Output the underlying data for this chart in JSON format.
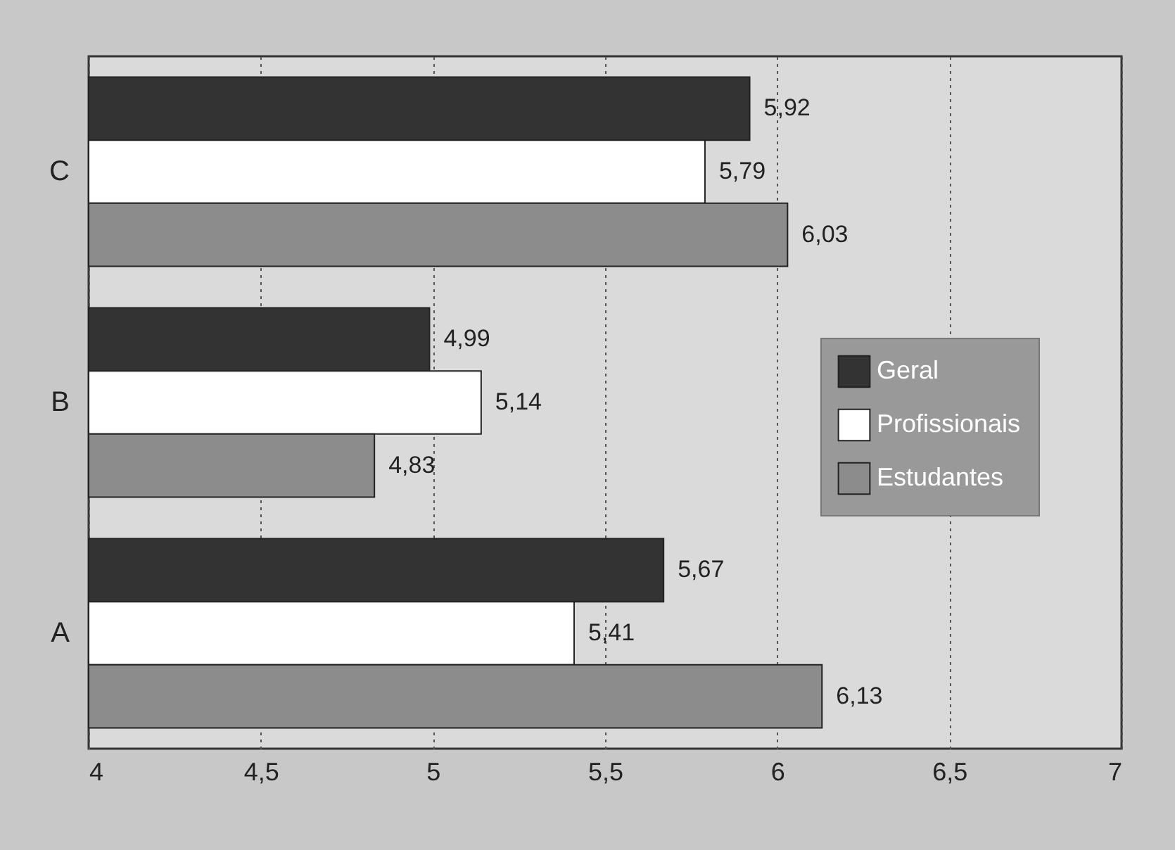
{
  "chart_data": {
    "type": "bar",
    "orientation": "horizontal",
    "categories": [
      "C",
      "B",
      "A"
    ],
    "series": [
      {
        "name": "Geral",
        "color": "#333333",
        "values": [
          5.92,
          4.99,
          5.67
        ],
        "value_labels": [
          "5,92",
          "4,99",
          "5,67"
        ]
      },
      {
        "name": "Profissionais",
        "color": "#ffffff",
        "values": [
          5.79,
          5.14,
          5.41
        ],
        "value_labels": [
          "5,79",
          "5,14",
          "5,41"
        ]
      },
      {
        "name": "Estudantes",
        "color": "#8c8c8c",
        "values": [
          6.03,
          4.83,
          6.13
        ],
        "value_labels": [
          "6,03",
          "4,83",
          "6,13"
        ]
      }
    ],
    "xlim": [
      4,
      7
    ],
    "xticks": [
      4,
      {
        "value": 4.5,
        "label": "4,5"
      },
      5,
      {
        "value": 5.5,
        "label": "5,5"
      },
      6,
      {
        "value": 6.5,
        "label": "6,5"
      },
      7
    ],
    "grid": "x",
    "legend": "right"
  }
}
